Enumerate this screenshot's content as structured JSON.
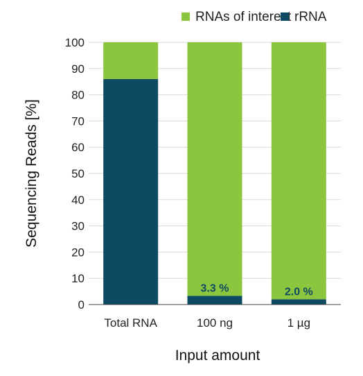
{
  "chart_data": {
    "type": "bar",
    "stacked": true,
    "categories": [
      "Total RNA",
      "100 ng",
      "1 µg"
    ],
    "series": [
      {
        "name": "rRNA",
        "color": "#0f4a63",
        "values": [
          86,
          3.3,
          2.0
        ]
      },
      {
        "name": "RNAs of interest",
        "color": "#8cc63f",
        "values": [
          14,
          96.7,
          98.0
        ]
      }
    ],
    "legend_order": [
      "RNAs of interest",
      "rRNA"
    ],
    "legend_position": "top",
    "data_labels": [
      "",
      "3.3 %",
      "2.0 %"
    ],
    "title": "",
    "xlabel": "Input amount",
    "ylabel": "Sequencing Reads [%]",
    "ylim": [
      0,
      100
    ],
    "yticks": [
      0,
      10,
      20,
      30,
      40,
      50,
      60,
      70,
      80,
      90,
      100
    ],
    "grid": true
  }
}
